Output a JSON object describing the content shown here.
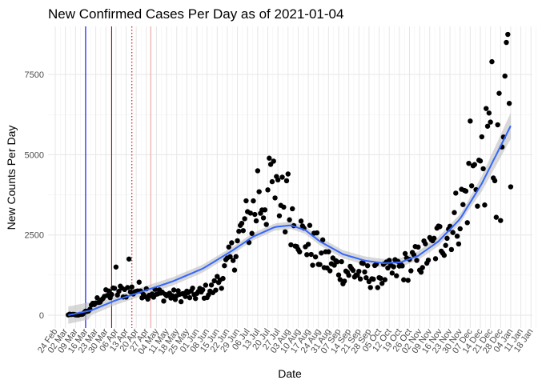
{
  "chart_data": {
    "type": "scatter",
    "title": "New Confirmed Cases Per Day as of 2021-01-04",
    "xlabel": "Date",
    "ylabel": "New Counts Per Day",
    "x_domain": [
      "2020-02-19",
      "2021-01-19"
    ],
    "ylim": [
      -400,
      9000
    ],
    "y_ticks": [
      0,
      2500,
      5000,
      7500
    ],
    "y_tick_labels": [
      "0",
      "2500",
      "5000",
      "7500"
    ],
    "x_ticks": [
      "2020-02-24",
      "2020-03-02",
      "2020-03-09",
      "2020-03-16",
      "2020-03-23",
      "2020-03-30",
      "2020-04-06",
      "2020-04-13",
      "2020-04-20",
      "2020-04-27",
      "2020-05-04",
      "2020-05-11",
      "2020-05-18",
      "2020-05-25",
      "2020-06-01",
      "2020-06-08",
      "2020-06-15",
      "2020-06-22",
      "2020-06-29",
      "2020-07-06",
      "2020-07-13",
      "2020-07-20",
      "2020-07-27",
      "2020-08-03",
      "2020-08-10",
      "2020-08-17",
      "2020-08-24",
      "2020-08-31",
      "2020-09-07",
      "2020-09-14",
      "2020-09-21",
      "2020-09-28",
      "2020-10-05",
      "2020-10-12",
      "2020-10-19",
      "2020-10-26",
      "2020-11-02",
      "2020-11-09",
      "2020-11-16",
      "2020-11-23",
      "2020-11-30",
      "2020-12-07",
      "2020-12-14",
      "2020-12-21",
      "2020-12-28",
      "2021-01-04",
      "2021-01-11",
      "2021-01-18"
    ],
    "x_tick_labels": [
      "24 Feb",
      "02 Mar",
      "09 Mar",
      "16 Mar",
      "23 Mar",
      "30 Mar",
      "06 Apr",
      "13 Apr",
      "20 Apr",
      "27 Apr",
      "04 May",
      "11 May",
      "18 May",
      "25 May",
      "01 Jun",
      "08 Jun",
      "15 Jun",
      "22 Jun",
      "29 Jun",
      "06 Jul",
      "13 Jul",
      "20 Jul",
      "27 Jul",
      "03 Aug",
      "10 Aug",
      "17 Aug",
      "24 Aug",
      "31 Aug",
      "07 Sep",
      "14 Sep",
      "21 Sep",
      "28 Sep",
      "05 Oct",
      "12 Oct",
      "19 Oct",
      "26 Oct",
      "02 Nov",
      "09 Nov",
      "16 Nov",
      "23 Nov",
      "30 Nov",
      "07 Dec",
      "14 Dec",
      "21 Dec",
      "28 Dec",
      "04 Jan",
      "11 Jan",
      "18 Jan"
    ],
    "vlines": [
      {
        "date": "2020-03-16",
        "color": "#0000ff",
        "style": "solid"
      },
      {
        "date": "2020-04-03",
        "color": "#cc0000",
        "style": "solid"
      },
      {
        "date": "2020-04-17",
        "color": "#cc0000",
        "style": "dotted"
      },
      {
        "date": "2020-04-30",
        "color": "#e8a6a6",
        "style": "solid"
      }
    ],
    "points_color": "#000000",
    "smooth_color": "#3366ff",
    "ribbon_color": "#bebebe",
    "anchors": [
      [
        "2020-03-04",
        0
      ],
      [
        "2020-03-12",
        20
      ],
      [
        "2020-03-18",
        150
      ],
      [
        "2020-03-25",
        500
      ],
      [
        "2020-04-01",
        650
      ],
      [
        "2020-04-10",
        750
      ],
      [
        "2020-04-22",
        800
      ],
      [
        "2020-05-05",
        650
      ],
      [
        "2020-05-18",
        600
      ],
      [
        "2020-06-01",
        650
      ],
      [
        "2020-06-12",
        800
      ],
      [
        "2020-06-22",
        1500
      ],
      [
        "2020-07-01",
        2500
      ],
      [
        "2020-07-10",
        3200
      ],
      [
        "2020-07-20",
        3800
      ],
      [
        "2020-07-28",
        3500
      ],
      [
        "2020-08-04",
        3300
      ],
      [
        "2020-08-12",
        2500
      ],
      [
        "2020-08-22",
        2000
      ],
      [
        "2020-09-01",
        1600
      ],
      [
        "2020-09-10",
        1400
      ],
      [
        "2020-09-20",
        1300
      ],
      [
        "2020-10-01",
        1200
      ],
      [
        "2020-10-12",
        1300
      ],
      [
        "2020-10-22",
        1500
      ],
      [
        "2020-11-01",
        1700
      ],
      [
        "2020-11-10",
        2000
      ],
      [
        "2020-11-20",
        2600
      ],
      [
        "2020-11-30",
        3200
      ],
      [
        "2020-12-08",
        4200
      ],
      [
        "2020-12-16",
        4800
      ],
      [
        "2020-12-24",
        5200
      ],
      [
        "2021-01-01",
        5800
      ],
      [
        "2021-01-04",
        5600
      ]
    ],
    "smooth": [
      [
        "2020-03-04",
        0
      ],
      [
        "2020-03-20",
        150
      ],
      [
        "2020-04-05",
        450
      ],
      [
        "2020-04-25",
        750
      ],
      [
        "2020-05-15",
        1050
      ],
      [
        "2020-06-05",
        1450
      ],
      [
        "2020-06-25",
        2000
      ],
      [
        "2020-07-10",
        2450
      ],
      [
        "2020-07-25",
        2750
      ],
      [
        "2020-08-05",
        2800
      ],
      [
        "2020-08-15",
        2650
      ],
      [
        "2020-08-25",
        2300
      ],
      [
        "2020-09-10",
        1900
      ],
      [
        "2020-09-25",
        1700
      ],
      [
        "2020-10-08",
        1620
      ],
      [
        "2020-10-20",
        1650
      ],
      [
        "2020-11-01",
        1850
      ],
      [
        "2020-11-15",
        2300
      ],
      [
        "2020-11-30",
        3000
      ],
      [
        "2020-12-15",
        4100
      ],
      [
        "2021-01-04",
        5900
      ]
    ],
    "outliers": [
      [
        "2020-04-06",
        1500
      ],
      [
        "2020-04-15",
        1750
      ],
      [
        "2020-07-13",
        4500
      ],
      [
        "2020-07-22",
        4700
      ],
      [
        "2020-07-24",
        4800
      ],
      [
        "2020-07-30",
        4300
      ],
      [
        "2020-08-03",
        4400
      ],
      [
        "2020-12-07",
        6050
      ],
      [
        "2020-12-20",
        6300
      ],
      [
        "2020-12-22",
        7900
      ],
      [
        "2021-01-01",
        8500
      ],
      [
        "2021-01-02",
        8750
      ],
      [
        "2021-01-03",
        6600
      ],
      [
        "2021-01-04",
        4000
      ],
      [
        "2020-12-28",
        2950
      ],
      [
        "2020-12-25",
        3050
      ]
    ]
  }
}
